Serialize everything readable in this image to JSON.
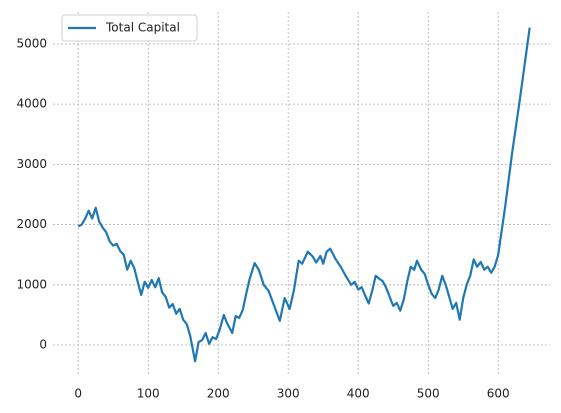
{
  "chart_data": {
    "type": "line",
    "x": [
      0,
      5,
      10,
      15,
      20,
      25,
      30,
      35,
      40,
      45,
      50,
      55,
      60,
      65,
      70,
      75,
      80,
      85,
      90,
      95,
      100,
      105,
      110,
      115,
      120,
      125,
      130,
      135,
      140,
      145,
      150,
      155,
      160,
      167,
      172,
      177,
      182,
      187,
      192,
      197,
      202,
      208,
      212,
      220,
      225,
      230,
      235,
      240,
      245,
      252,
      258,
      265,
      272,
      280,
      288,
      295,
      302,
      308,
      315,
      320,
      328,
      335,
      340,
      346,
      350,
      355,
      360,
      368,
      375,
      382,
      390,
      395,
      400,
      405,
      410,
      415,
      420,
      425,
      430,
      435,
      440,
      445,
      450,
      455,
      460,
      465,
      470,
      475,
      480,
      484,
      490,
      495,
      500,
      505,
      510,
      515,
      520,
      525,
      530,
      535,
      540,
      545,
      550,
      555,
      560,
      565,
      570,
      575,
      580,
      585,
      590,
      595,
      600,
      610,
      620,
      630,
      645
    ],
    "series": [
      {
        "name": "Total Capital",
        "color": "#1f77b4",
        "values": [
          1970,
          2000,
          2100,
          2230,
          2100,
          2280,
          2050,
          1950,
          1870,
          1720,
          1650,
          1680,
          1560,
          1500,
          1250,
          1400,
          1280,
          1050,
          830,
          1050,
          950,
          1080,
          960,
          1110,
          870,
          800,
          620,
          680,
          520,
          600,
          420,
          350,
          150,
          -270,
          50,
          80,
          200,
          20,
          130,
          100,
          250,
          500,
          380,
          200,
          480,
          450,
          580,
          850,
          1100,
          1360,
          1250,
          1000,
          900,
          650,
          400,
          780,
          600,
          900,
          1400,
          1350,
          1550,
          1470,
          1370,
          1480,
          1350,
          1550,
          1600,
          1420,
          1300,
          1150,
          1000,
          1050,
          920,
          960,
          820,
          690,
          900,
          1150,
          1100,
          1060,
          950,
          800,
          650,
          700,
          570,
          750,
          1050,
          1300,
          1250,
          1400,
          1250,
          1180,
          1000,
          850,
          780,
          920,
          1150,
          1000,
          800,
          600,
          700,
          420,
          780,
          1000,
          1150,
          1420,
          1300,
          1380,
          1250,
          1300,
          1200,
          1300,
          1500,
          2300,
          3200,
          4000,
          5270
        ]
      }
    ],
    "xlim": [
      -36,
      674
    ],
    "xticks": [
      0,
      100,
      200,
      300,
      400,
      500,
      600
    ],
    "ylim": [
      -498,
      5530
    ],
    "yticks": [
      0,
      1000,
      2000,
      3000,
      4000,
      5000
    ],
    "grid": true,
    "legend": "upper left"
  }
}
